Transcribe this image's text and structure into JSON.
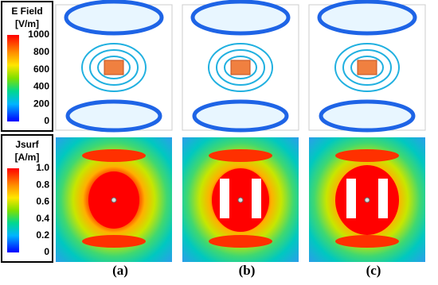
{
  "legends": [
    {
      "title": "E Field",
      "unit": "[V/m]",
      "ticks": [
        "1000",
        "800",
        "600",
        "400",
        "200",
        "0"
      ]
    },
    {
      "title": "Jsurf",
      "unit": "[A/m]",
      "ticks": [
        "1.0",
        "0.8",
        "0.6",
        "0.4",
        "0.2",
        "0"
      ]
    }
  ],
  "panels": [
    {
      "label": "(a)"
    },
    {
      "label": "(b)"
    },
    {
      "label": "(c)"
    }
  ]
}
